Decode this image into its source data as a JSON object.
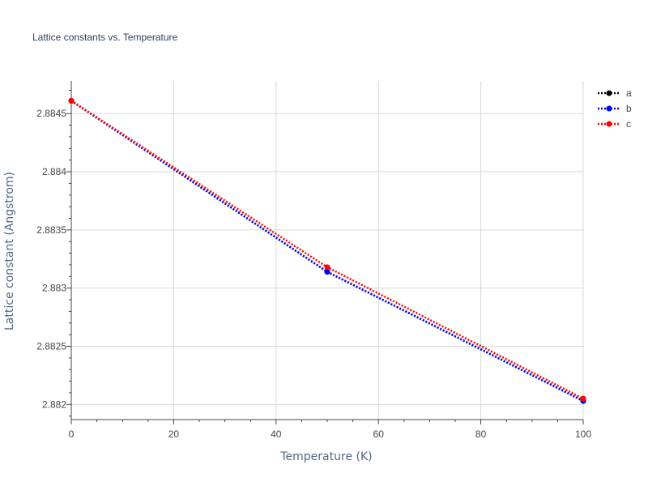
{
  "chart_data": {
    "type": "line",
    "title": "Lattice constants vs. Temperature",
    "xlabel": "Temperature (K)",
    "ylabel": "Lattice constant (Angstrom)",
    "xlim": [
      0,
      100
    ],
    "ylim": [
      2.88187,
      2.88478
    ],
    "x_ticks": [
      0,
      20,
      40,
      60,
      80,
      100
    ],
    "x_tick_labels": [
      "0",
      "20",
      "40",
      "60",
      "80",
      "100"
    ],
    "y_ticks": [
      2.882,
      2.8825,
      2.883,
      2.8835,
      2.884,
      2.8845
    ],
    "y_tick_labels": [
      "2.882",
      "2.8825",
      "2.883",
      "2.8835",
      "2.884",
      "2.8845"
    ],
    "grid": true,
    "legend_position": "top-right",
    "line_style": "dotted with markers",
    "series": [
      {
        "name": "a",
        "color": "#000000",
        "x": [
          0,
          50,
          100
        ],
        "y": [
          2.88461,
          2.88314,
          2.88203
        ]
      },
      {
        "name": "b",
        "color": "#0000ff",
        "x": [
          0,
          50,
          100
        ],
        "y": [
          2.88461,
          2.88314,
          2.88203
        ]
      },
      {
        "name": "c",
        "color": "#ff0000",
        "x": [
          0,
          50,
          100
        ],
        "y": [
          2.88461,
          2.88318,
          2.88205
        ]
      }
    ]
  }
}
